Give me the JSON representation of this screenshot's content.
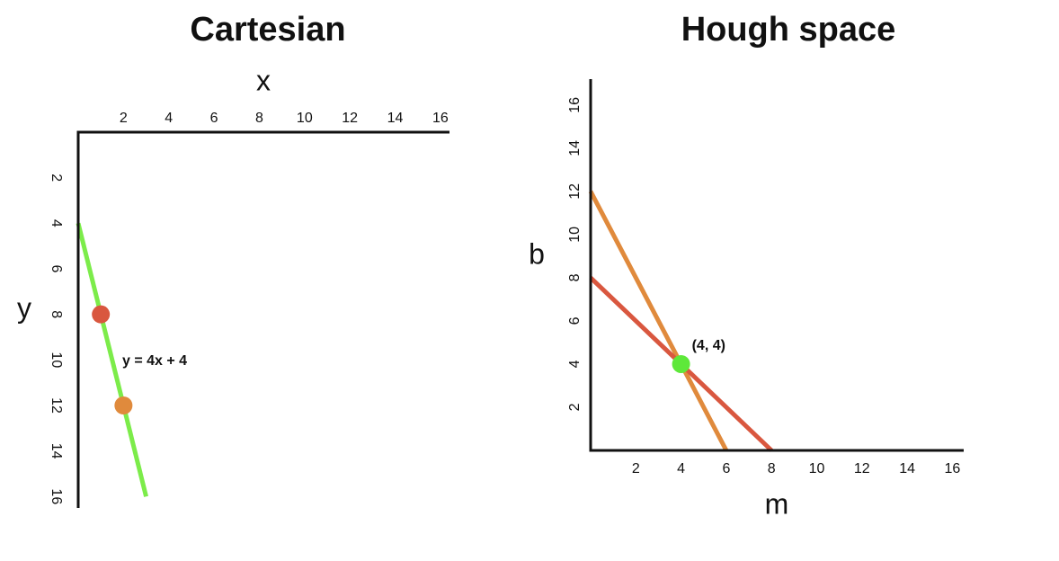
{
  "chart_data": [
    {
      "type": "line",
      "title": "Cartesian",
      "x_label": "x",
      "y_label": "y",
      "x_axis_position": "top",
      "y_inverted": true,
      "xlim": [
        0,
        16.4
      ],
      "ylim": [
        0,
        16.5
      ],
      "xticks": [
        2,
        4,
        6,
        8,
        10,
        12,
        14,
        16
      ],
      "yticks": [
        2,
        4,
        6,
        8,
        10,
        12,
        14,
        16
      ],
      "annotation": "y = 4x + 4",
      "series": [
        {
          "mode": "line",
          "color": "#7cec4a",
          "x": [
            0,
            3
          ],
          "values": [
            4,
            16
          ]
        },
        {
          "mode": "markers",
          "color": "#d9573f",
          "x": [
            1
          ],
          "values": [
            8
          ]
        },
        {
          "mode": "markers",
          "color": "#e08a3c",
          "x": [
            2
          ],
          "values": [
            12
          ]
        }
      ]
    },
    {
      "type": "line",
      "title": "Hough space",
      "x_label": "m",
      "y_label": "b",
      "x_axis_position": "bottom",
      "y_inverted": false,
      "xlim": [
        0,
        16.5
      ],
      "ylim": [
        0,
        17.2
      ],
      "xticks": [
        2,
        4,
        6,
        8,
        10,
        12,
        14,
        16
      ],
      "yticks": [
        2,
        4,
        6,
        8,
        10,
        12,
        14,
        16
      ],
      "series": [
        {
          "mode": "line",
          "color": "#e08a3c",
          "x": [
            0,
            6
          ],
          "values": [
            12,
            0
          ]
        },
        {
          "mode": "line",
          "color": "#d9573f",
          "x": [
            0,
            8
          ],
          "values": [
            8,
            0
          ]
        },
        {
          "mode": "markers",
          "color": "#5ee83a",
          "x": [
            4
          ],
          "values": [
            4
          ],
          "value_labels": [
            "(4, 4)"
          ]
        }
      ]
    }
  ]
}
